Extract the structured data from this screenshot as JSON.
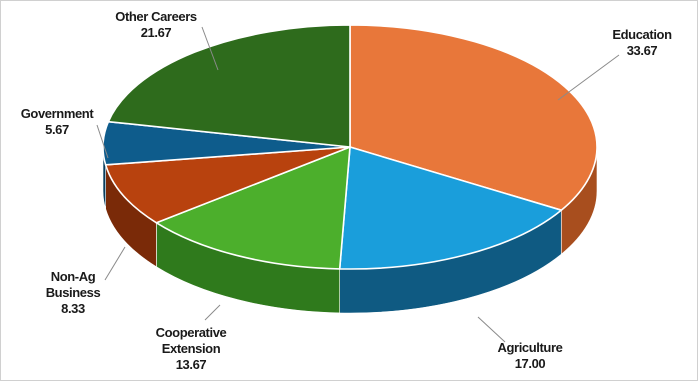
{
  "chart_data": {
    "type": "pie",
    "style": "3d",
    "legend": "none",
    "title": "",
    "slices": [
      {
        "label": "Education",
        "value": 33.67,
        "value_label": "33.67",
        "color": "#E8773A",
        "side": "#A84E1E"
      },
      {
        "label": "Agriculture",
        "value": 17.0,
        "value_label": "17.00",
        "color": "#1A9EDB",
        "side": "#0F5A82"
      },
      {
        "label": "Cooperative Extension",
        "value": 13.67,
        "value_label": "13.67",
        "color": "#4CAF2C",
        "side": "#2F7A1C"
      },
      {
        "label": "Non-Ag Business",
        "value": 8.33,
        "value_label": "8.33",
        "color": "#B8420E",
        "side": "#7A2A08"
      },
      {
        "label": "Government",
        "value": 5.67,
        "value_label": "5.67",
        "color": "#0E5C8C",
        "side": "#093E5E"
      },
      {
        "label": "Other Careers",
        "value": 21.67,
        "value_label": "21.67",
        "color": "#2E6B1C",
        "side": "#1D4812"
      }
    ],
    "label_lines": {
      "Education": [
        "Education",
        "33.67"
      ],
      "Agriculture": [
        "Agriculture",
        "17.00"
      ],
      "Cooperative Extension": [
        "Cooperative",
        "Extension",
        "13.67"
      ],
      "Non-Ag Business": [
        "Non-Ag",
        "Business",
        "8.33"
      ],
      "Government": [
        "Government",
        "5.67"
      ],
      "Other Careers": [
        "Other Careers",
        "21.67"
      ]
    }
  }
}
